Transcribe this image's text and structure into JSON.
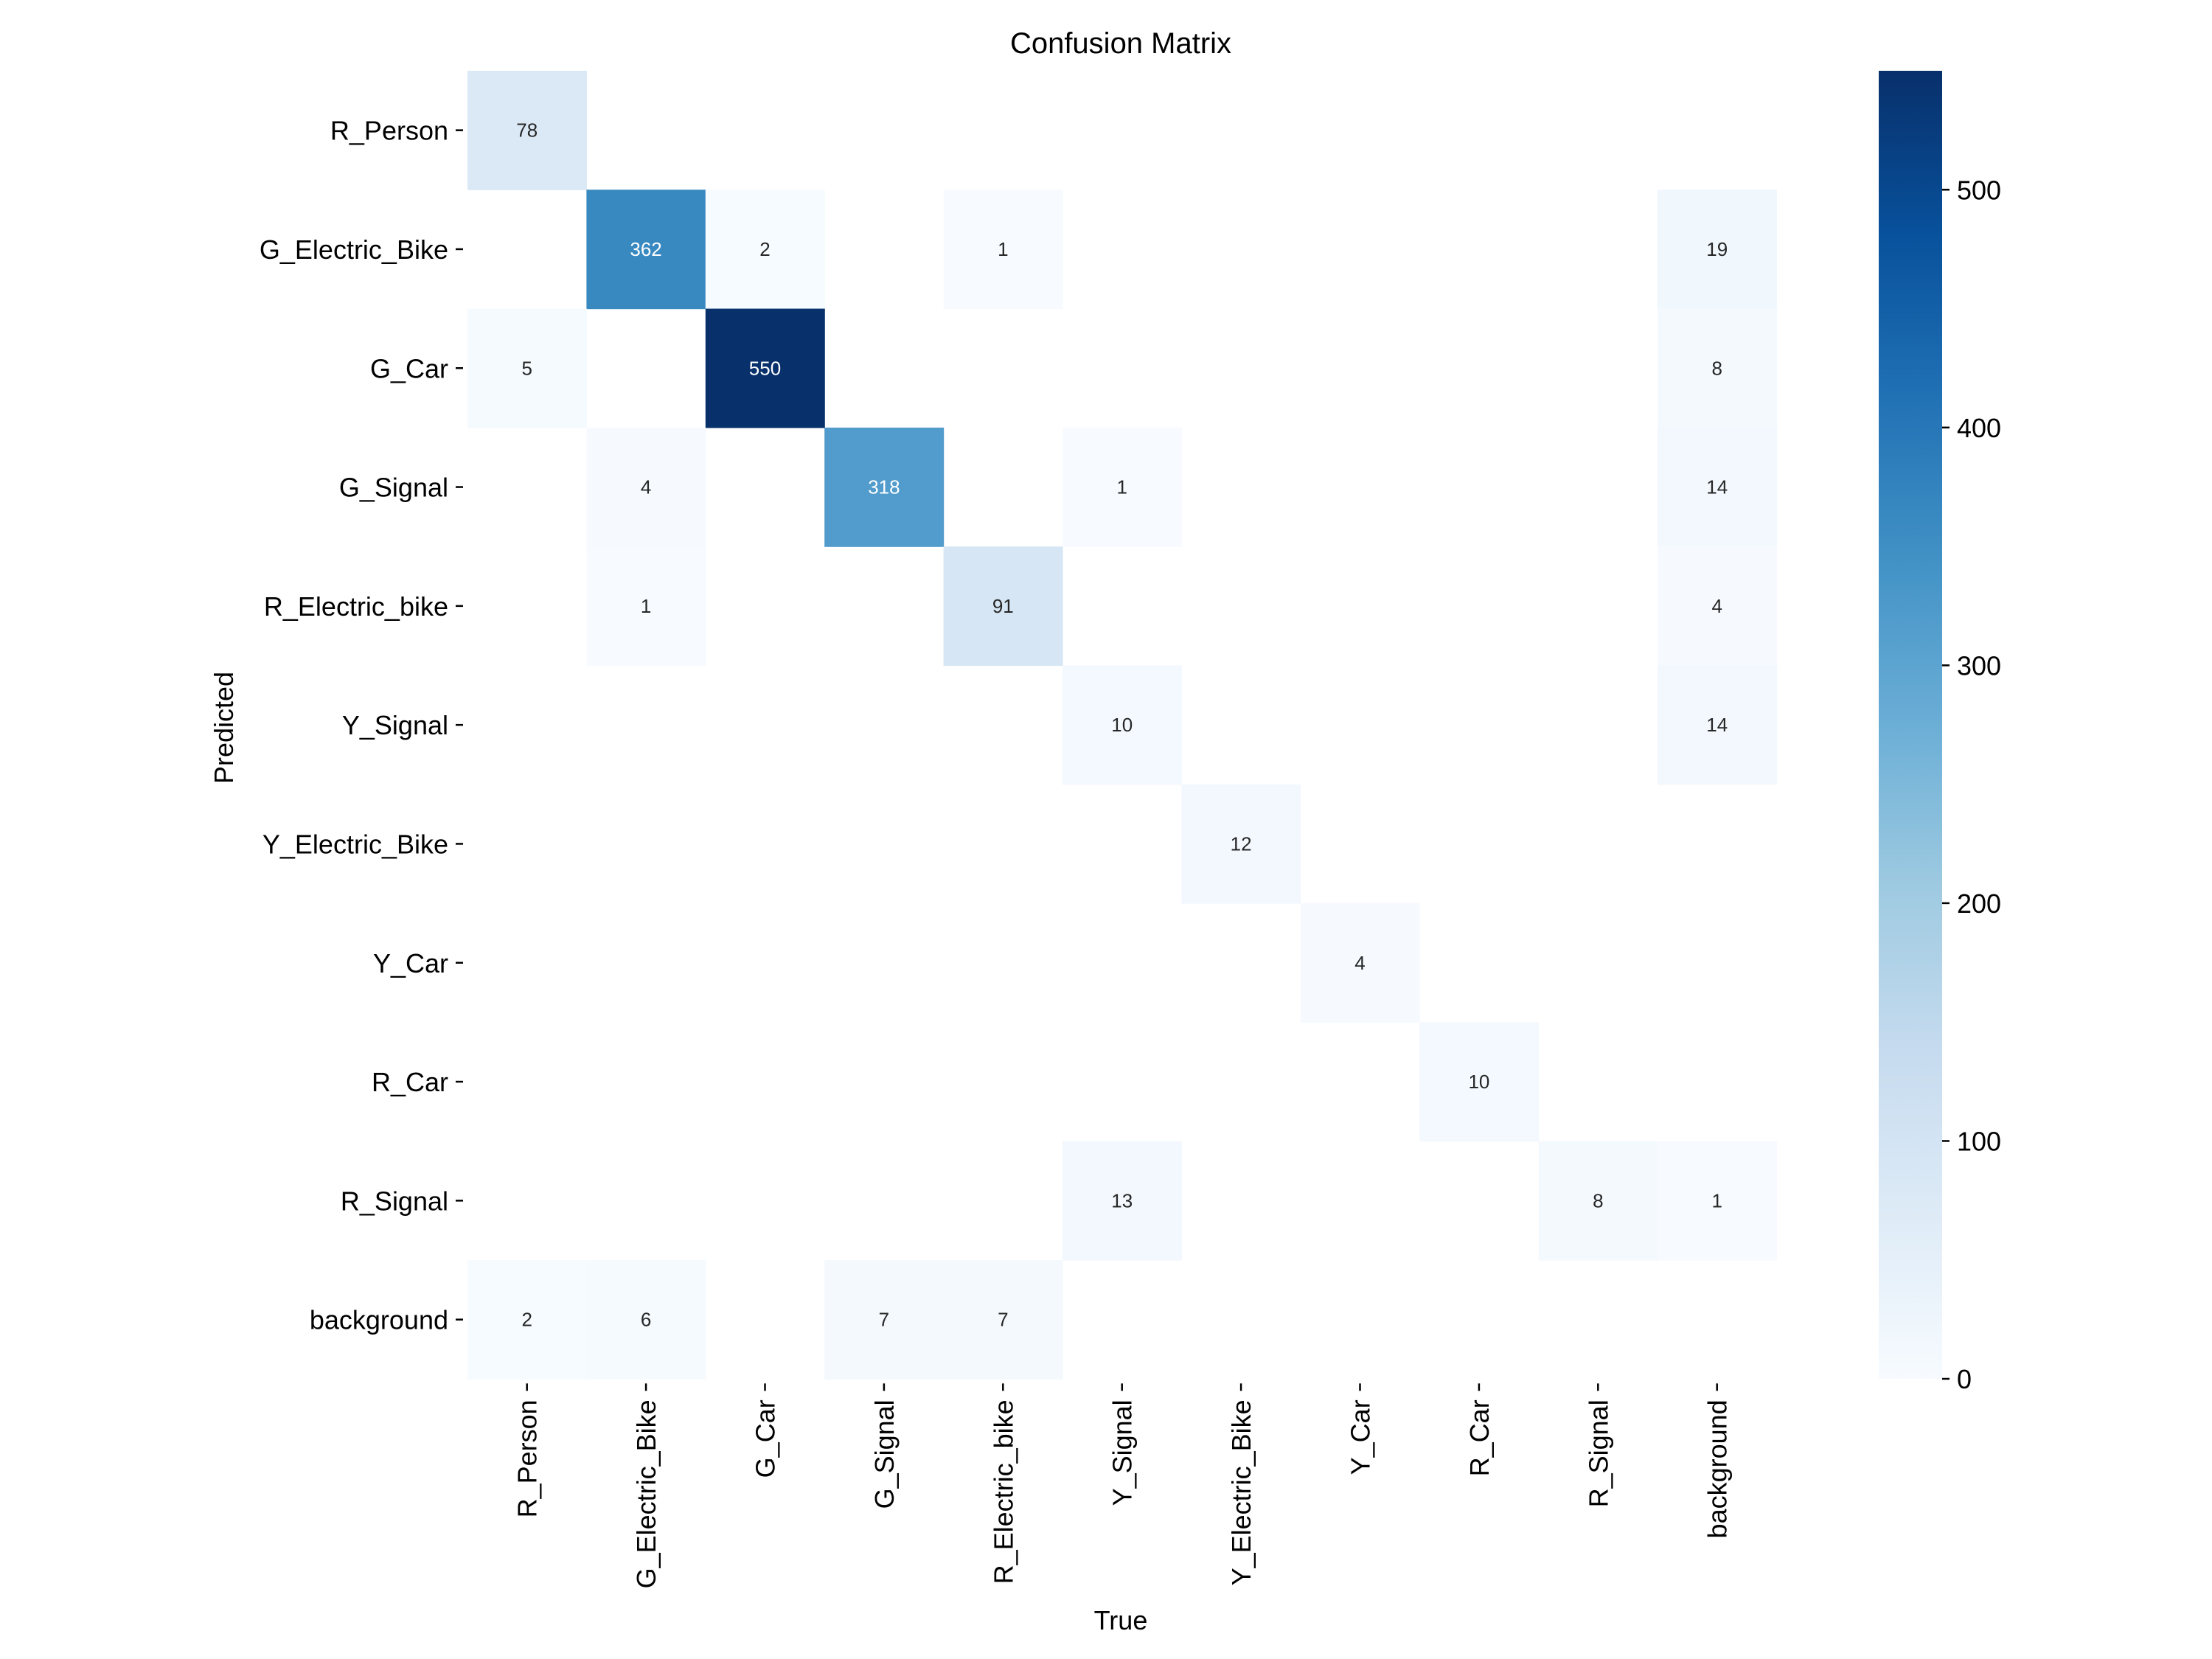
{
  "chart_data": {
    "type": "heatmap",
    "title": "Confusion Matrix",
    "xlabel": "True",
    "ylabel": "Predicted",
    "x_categories": [
      "R_Person",
      "G_Electric_Bike",
      "G_Car",
      "G_Signal",
      "R_Electric_bike",
      "Y_Signal",
      "Y_Electric_Bike",
      "Y_Car",
      "R_Car",
      "R_Signal",
      "background"
    ],
    "y_categories": [
      "R_Person",
      "G_Electric_Bike",
      "G_Car",
      "G_Signal",
      "R_Electric_bike",
      "Y_Signal",
      "Y_Electric_Bike",
      "Y_Car",
      "R_Car",
      "R_Signal",
      "background"
    ],
    "values": [
      [
        78,
        null,
        null,
        null,
        null,
        null,
        null,
        null,
        null,
        null,
        null
      ],
      [
        null,
        362,
        2,
        null,
        1,
        null,
        null,
        null,
        null,
        null,
        19
      ],
      [
        5,
        null,
        550,
        null,
        null,
        null,
        null,
        null,
        null,
        null,
        8
      ],
      [
        null,
        4,
        null,
        318,
        null,
        1,
        null,
        null,
        null,
        null,
        14
      ],
      [
        null,
        1,
        null,
        null,
        91,
        null,
        null,
        null,
        null,
        null,
        4
      ],
      [
        null,
        null,
        null,
        null,
        null,
        10,
        null,
        null,
        null,
        null,
        14
      ],
      [
        null,
        null,
        null,
        null,
        null,
        null,
        12,
        null,
        null,
        null,
        null
      ],
      [
        null,
        null,
        null,
        null,
        null,
        null,
        null,
        4,
        null,
        null,
        null
      ],
      [
        null,
        null,
        null,
        null,
        null,
        null,
        null,
        null,
        10,
        null,
        null
      ],
      [
        null,
        null,
        null,
        null,
        null,
        13,
        null,
        null,
        null,
        8,
        1
      ],
      [
        2,
        6,
        null,
        7,
        7,
        null,
        null,
        null,
        null,
        null,
        null
      ]
    ],
    "colorbar": {
      "min": 0,
      "max": 550,
      "ticks": [
        0,
        100,
        200,
        300,
        400,
        500
      ],
      "colormap": "Blues",
      "stops": [
        "#f7fbff",
        "#deebf7",
        "#c6dbef",
        "#9ecae1",
        "#6baed6",
        "#4292c6",
        "#2171b5",
        "#08519c",
        "#08306b"
      ]
    },
    "grid": false
  }
}
